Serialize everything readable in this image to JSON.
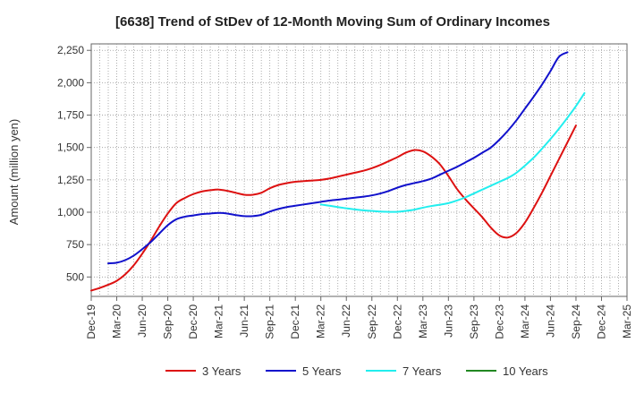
{
  "chart_data": {
    "type": "line",
    "title": "[6638]  Trend of StDev of 12-Month Moving Sum of Ordinary Incomes",
    "xlabel": "",
    "ylabel": "Amount (million yen)",
    "ylim": [
      350,
      2300
    ],
    "yticks": [
      500,
      750,
      1000,
      1250,
      1500,
      1750,
      2000,
      2250
    ],
    "ytick_labels": [
      "500",
      "750",
      "1,000",
      "1,250",
      "1,500",
      "1,750",
      "2,000",
      "2,250"
    ],
    "x_tick_labels": [
      "Dec-19",
      "Mar-20",
      "Jun-20",
      "Sep-20",
      "Dec-20",
      "Mar-21",
      "Jun-21",
      "Sep-21",
      "Dec-21",
      "Mar-22",
      "Jun-22",
      "Sep-22",
      "Dec-22",
      "Mar-23",
      "Jun-23",
      "Sep-23",
      "Dec-23",
      "Mar-24",
      "Jun-24",
      "Sep-24",
      "Dec-24",
      "Mar-25"
    ],
    "x_count": 64,
    "grid": true,
    "legend_position": "bottom",
    "series": [
      {
        "name": "3 Years",
        "color": "#dd1111",
        "start_index": 0,
        "values": [
          395,
          415,
          440,
          470,
          520,
          590,
          680,
          780,
          890,
          990,
          1070,
          1110,
          1140,
          1160,
          1170,
          1175,
          1165,
          1150,
          1135,
          1135,
          1150,
          1185,
          1210,
          1225,
          1235,
          1240,
          1245,
          1250,
          1260,
          1275,
          1290,
          1305,
          1320,
          1340,
          1365,
          1395,
          1425,
          1460,
          1480,
          1470,
          1430,
          1370,
          1280,
          1180,
          1100,
          1030,
          960,
          880,
          820,
          805,
          840,
          920,
          1030,
          1150,
          1280,
          1410,
          1540,
          1670
        ]
      },
      {
        "name": "5 Years",
        "color": "#1111cc",
        "start_index": 2,
        "values": [
          605,
          610,
          630,
          665,
          715,
          770,
          835,
          900,
          945,
          965,
          975,
          985,
          990,
          995,
          990,
          978,
          970,
          970,
          980,
          1005,
          1025,
          1040,
          1050,
          1060,
          1070,
          1080,
          1090,
          1097,
          1105,
          1112,
          1120,
          1130,
          1145,
          1165,
          1190,
          1210,
          1225,
          1240,
          1260,
          1290,
          1320,
          1350,
          1385,
          1420,
          1460,
          1500,
          1560,
          1630,
          1710,
          1800,
          1890,
          1985,
          2090,
          2200,
          2235
        ]
      },
      {
        "name": "7 Years",
        "color": "#22eeee",
        "start_index": 27,
        "values": [
          1060,
          1050,
          1040,
          1030,
          1022,
          1015,
          1010,
          1005,
          1003,
          1003,
          1010,
          1020,
          1035,
          1048,
          1058,
          1070,
          1090,
          1115,
          1145,
          1175,
          1205,
          1235,
          1265,
          1305,
          1360,
          1420,
          1490,
          1565,
          1645,
          1730,
          1820,
          1920
        ]
      },
      {
        "name": "10 Years",
        "color": "#228822",
        "start_index": 0,
        "values": []
      }
    ]
  }
}
